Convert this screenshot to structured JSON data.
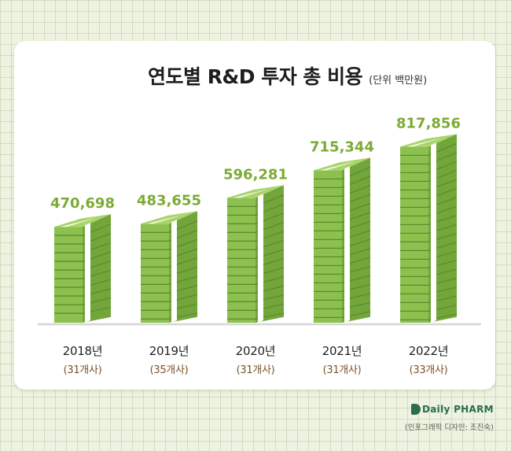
{
  "header": {
    "title": "연도별 R&D 투자 총 비용",
    "unit": "(단위 백만원)"
  },
  "chart_data": {
    "type": "bar",
    "title": "연도별 R&D 투자 총 비용",
    "subtitle": "(단위 백만원)",
    "categories": [
      "2018년",
      "2019년",
      "2020년",
      "2021년",
      "2022년"
    ],
    "sublabels": [
      "(31개사)",
      "(35개사)",
      "(31개사)",
      "(31개사)",
      "(33개사)"
    ],
    "values": [
      470698,
      483655,
      596281,
      715344,
      817856
    ],
    "value_labels": [
      "470,698",
      "483,655",
      "596,281",
      "715,344",
      "817,856"
    ],
    "ylim": [
      0,
      900000
    ],
    "grid": false,
    "legend": "none",
    "bar_style": "stacked banknote bundles"
  },
  "colors": {
    "value_text": "#7daa35",
    "bill_front": "#8dc14f",
    "bill_side": "#72a63a",
    "bill_top": "#a9d46b",
    "bill_edge": "#5d8c2c",
    "band": "#ffffff",
    "baseline": "#d6d6d6",
    "count_text": "#7a5228"
  },
  "branding": {
    "logo_text": "Daily PHARM",
    "credit": "(인포그래픽 디자인: 조진숙)"
  }
}
